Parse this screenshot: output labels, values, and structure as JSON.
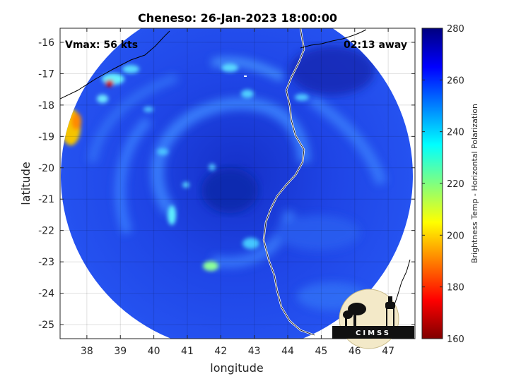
{
  "title": "Cheneso: 26-Jan-2023 18:00:00",
  "annotations": {
    "vmax": "Vmax: 56 kts",
    "away": "02:13 away"
  },
  "axes": {
    "xlabel": "longitude",
    "ylabel": "latitude",
    "xlim": [
      37.2,
      47.8
    ],
    "ylim": [
      -25.45,
      -15.55
    ],
    "xticks": [
      38,
      39,
      40,
      41,
      42,
      43,
      44,
      45,
      46,
      47
    ],
    "yticks": [
      -16,
      -17,
      -18,
      -19,
      -20,
      -21,
      -22,
      -23,
      -24,
      -25
    ],
    "grid": true
  },
  "colorbar": {
    "label": "Brightness Temp - Horizontal Polarization",
    "range": [
      160,
      280
    ],
    "ticks": [
      160,
      180,
      200,
      220,
      240,
      260,
      280
    ],
    "colormap": "jet"
  },
  "logo": {
    "text": "CIMSS"
  },
  "colors": {
    "background_field": "#1f3fe0",
    "coastline": "#ffffff",
    "outer_coast": "#000000"
  },
  "chart_data": {
    "type": "heatmap",
    "title": "Cheneso: 26-Jan-2023 18:00:00",
    "xlabel": "longitude",
    "ylabel": "latitude",
    "swath_center": [
      42.45,
      -20.2
    ],
    "swath_radius_deg": 5.2,
    "typical_value": 262,
    "features": [
      {
        "label": "warm band west coast",
        "lon": 37.5,
        "lat": -18.5,
        "value": 195
      },
      {
        "label": "warm spot",
        "lon": 38.6,
        "lat": -17.3,
        "value": 170
      },
      {
        "label": "rainband south",
        "lon": 41.6,
        "lat": -23.1,
        "value": 225
      },
      {
        "label": "rainband west",
        "lon": 40.5,
        "lat": -21.6,
        "value": 228
      },
      {
        "label": "eye",
        "lon": 42.3,
        "lat": -20.9,
        "value": 270
      }
    ]
  }
}
